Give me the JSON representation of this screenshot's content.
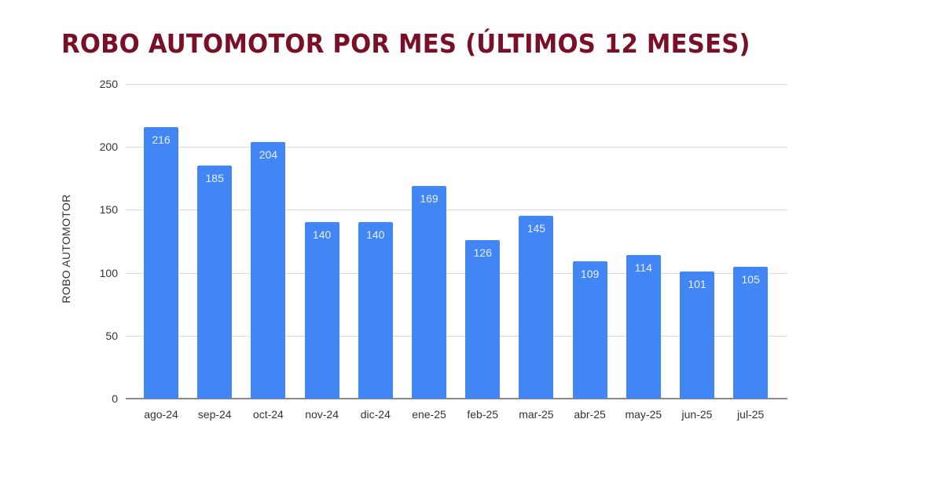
{
  "chart_data": {
    "type": "bar",
    "title": "ROBO AUTOMOTOR POR MES (ÚLTIMOS 12 MESES)",
    "xlabel": "",
    "ylabel": "ROBO AUTOMOTOR",
    "ylim": [
      0,
      250
    ],
    "yticks": [
      0,
      50,
      100,
      150,
      200,
      250
    ],
    "grid": true,
    "legend": "none",
    "categories": [
      "ago-24",
      "sep-24",
      "oct-24",
      "nov-24",
      "dic-24",
      "ene-25",
      "feb-25",
      "mar-25",
      "abr-25",
      "may-25",
      "jun-25",
      "jul-25"
    ],
    "values": [
      216,
      185,
      204,
      140,
      140,
      169,
      126,
      145,
      109,
      114,
      101,
      105
    ],
    "bar_color": "#4285f4",
    "title_color": "#7a1027"
  }
}
